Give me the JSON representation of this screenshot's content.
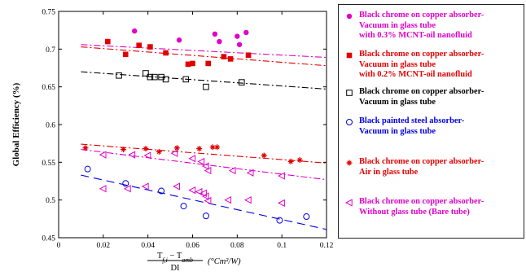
{
  "chart_data": {
    "type": "scatter",
    "title": "",
    "ylabel": "Global Efficiency (%)",
    "xlabel": {
      "fraction_numerator": "T",
      "numerator_sub": "f,i",
      "numerator_rest": " − T",
      "numerator_sub2": "amb",
      "denominator": "DI",
      "unit": "(°Cm²/W)"
    },
    "xlim": [
      0,
      0.12
    ],
    "ylim": [
      0.45,
      0.75
    ],
    "xticks": [
      "0",
      "0.02",
      "0.04",
      "0.06",
      "0.08",
      "0.1",
      "0.12"
    ],
    "yticks": [
      "0.45",
      "0.5",
      "0.55",
      "0.6",
      "0.65",
      "0.7",
      "0.75"
    ],
    "grid": false,
    "legend_position": "right",
    "series": [
      {
        "name": "Black chrome on copper absorber-Vacuum in glass tube with 0.3% MCNT-oil nanofluid",
        "color": "#e000c8",
        "marker": "filled-circle",
        "fit_line": {
          "style": "dash-dot",
          "x": [
            0.01,
            0.12
          ],
          "y": [
            0.706,
            0.689
          ]
        },
        "points": [
          [
            0.034,
            0.724
          ],
          [
            0.054,
            0.712
          ],
          [
            0.07,
            0.72
          ],
          [
            0.072,
            0.71
          ],
          [
            0.08,
            0.717
          ],
          [
            0.081,
            0.706
          ],
          [
            0.084,
            0.722
          ]
        ]
      },
      {
        "name": "Black chrome on copper absorber-Vacuum in glass tube with 0.2% MCNT-oil nanofluid",
        "color": "#e00000",
        "marker": "filled-square",
        "fit_line": {
          "style": "dash-dot",
          "x": [
            0.01,
            0.12
          ],
          "y": [
            0.703,
            0.678
          ]
        },
        "points": [
          [
            0.022,
            0.71
          ],
          [
            0.03,
            0.693
          ],
          [
            0.036,
            0.705
          ],
          [
            0.041,
            0.703
          ],
          [
            0.048,
            0.695
          ],
          [
            0.058,
            0.68
          ],
          [
            0.06,
            0.681
          ],
          [
            0.067,
            0.681
          ],
          [
            0.074,
            0.69
          ],
          [
            0.077,
            0.687
          ],
          [
            0.085,
            0.692
          ]
        ]
      },
      {
        "name": "Black chrome on copper absorber-Vacuum in glass tube",
        "color": "#000000",
        "marker": "open-square",
        "fit_line": {
          "style": "dash-dot",
          "x": [
            0.01,
            0.12
          ],
          "y": [
            0.67,
            0.647
          ]
        },
        "points": [
          [
            0.027,
            0.665
          ],
          [
            0.039,
            0.668
          ],
          [
            0.041,
            0.663
          ],
          [
            0.043,
            0.663
          ],
          [
            0.046,
            0.663
          ],
          [
            0.048,
            0.66
          ],
          [
            0.057,
            0.66
          ],
          [
            0.066,
            0.65
          ],
          [
            0.082,
            0.656
          ]
        ]
      },
      {
        "name": "Black painted steel absorber-Vacuum in glass tube",
        "color": "#0000e0",
        "marker": "open-circle",
        "fit_line": {
          "style": "dashed",
          "x": [
            0.01,
            0.12
          ],
          "y": [
            0.533,
            0.461
          ]
        },
        "points": [
          [
            0.013,
            0.541
          ],
          [
            0.03,
            0.522
          ],
          [
            0.046,
            0.512
          ],
          [
            0.056,
            0.492
          ],
          [
            0.066,
            0.479
          ],
          [
            0.099,
            0.473
          ],
          [
            0.111,
            0.478
          ]
        ]
      },
      {
        "name": "Black chrome on copper absorber-Air in glass tube",
        "color": "#e00000",
        "marker": "plus-star",
        "fit_line": {
          "style": "dash-dot",
          "x": [
            0.01,
            0.12
          ],
          "y": [
            0.574,
            0.549
          ]
        },
        "points": [
          [
            0.012,
            0.569
          ],
          [
            0.029,
            0.567
          ],
          [
            0.039,
            0.568
          ],
          [
            0.045,
            0.564
          ],
          [
            0.053,
            0.569
          ],
          [
            0.063,
            0.568
          ],
          [
            0.069,
            0.57
          ],
          [
            0.071,
            0.57
          ],
          [
            0.092,
            0.559
          ],
          [
            0.104,
            0.551
          ],
          [
            0.108,
            0.553
          ]
        ]
      },
      {
        "name": "Black chrome on copper absorber-Without glass tube (Bare tube)",
        "color": "#e000c8",
        "marker": "open-triangle-left",
        "fit_line": {
          "style": "dash-dot",
          "x": [
            0.01,
            0.12
          ],
          "y": [
            0.567,
            0.527
          ]
        },
        "points": [
          [
            0.02,
            0.56
          ],
          [
            0.033,
            0.56
          ],
          [
            0.04,
            0.559
          ],
          [
            0.052,
            0.562
          ],
          [
            0.06,
            0.555
          ],
          [
            0.064,
            0.551
          ],
          [
            0.066,
            0.545
          ],
          [
            0.067,
            0.539
          ],
          [
            0.078,
            0.539
          ],
          [
            0.086,
            0.536
          ],
          [
            0.1,
            0.532
          ],
          [
            0.02,
            0.515
          ],
          [
            0.031,
            0.515
          ],
          [
            0.039,
            0.518
          ],
          [
            0.053,
            0.518
          ],
          [
            0.06,
            0.513
          ],
          [
            0.063,
            0.511
          ],
          [
            0.065,
            0.509
          ],
          [
            0.066,
            0.505
          ],
          [
            0.067,
            0.499
          ],
          [
            0.076,
            0.5
          ],
          [
            0.085,
            0.5
          ],
          [
            0.1,
            0.496
          ]
        ]
      }
    ]
  },
  "legend": [
    {
      "lines": [
        "Black chrome on copper absorber-",
        "Vacuum in glass tube",
        "with 0.3% MCNT-oil nanofluid"
      ],
      "color": "#e000c8",
      "marker": "filled-circle"
    },
    {
      "lines": [
        "Black chrome on copper absorber-",
        "Vacuum in glass tube",
        "with 0.2% MCNT-oil nanofluid"
      ],
      "color": "#e00000",
      "marker": "filled-square"
    },
    {
      "lines": [
        "Black chrome on copper absorber-",
        "Vacuum in glass tube"
      ],
      "color": "#000000",
      "marker": "open-square"
    },
    {
      "lines": [
        "Black painted steel absorber-",
        "Vacuum in glass tube"
      ],
      "color": "#0000e0",
      "marker": "open-circle"
    },
    {
      "lines": [
        "Black chrome on copper absorber-",
        "Air in glass tube"
      ],
      "color": "#e00000",
      "marker": "plus-star"
    },
    {
      "lines": [
        "Black chrome on copper absorber-",
        "Without glass tube (Bare tube)"
      ],
      "color": "#e000c8",
      "marker": "open-triangle-left"
    }
  ]
}
